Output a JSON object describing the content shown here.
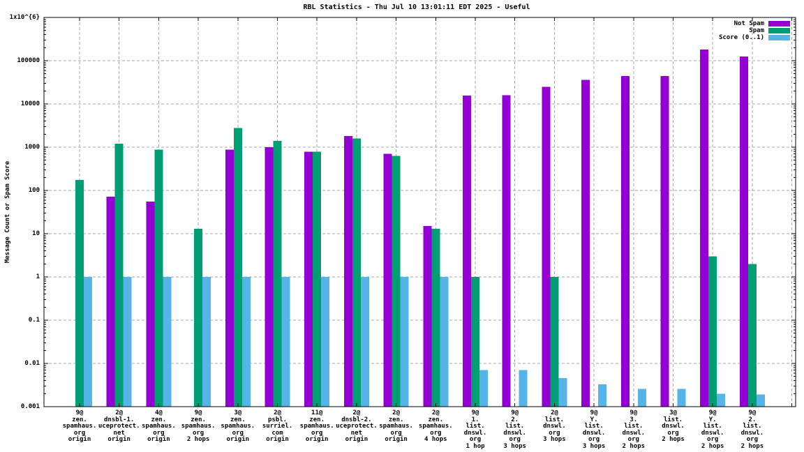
{
  "title": "RBL Statistics - Thu Jul 10 13:01:11 EDT 2025 - Useful",
  "colors": {
    "not_spam": "#9400d3",
    "spam": "#009e73",
    "score": "#56b4e9",
    "grid": "#a6a6a6",
    "axis": "#000000",
    "background": "#ffffff"
  },
  "legend": [
    {
      "label": "Not Spam",
      "color": "#9400d3"
    },
    {
      "label": "Spam",
      "color": "#009e73"
    },
    {
      "label": "Score (0..1)",
      "color": "#56b4e9"
    }
  ],
  "y_axis": {
    "label": "Message Count or Spam Score",
    "scale": "log",
    "ticks": [
      {
        "label": "1x10^{6}",
        "value": 1000000
      },
      {
        "label": "100000",
        "value": 100000
      },
      {
        "label": "10000",
        "value": 10000
      },
      {
        "label": "1000",
        "value": 1000
      },
      {
        "label": "100",
        "value": 100
      },
      {
        "label": "10",
        "value": 10
      },
      {
        "label": "1",
        "value": 1
      },
      {
        "label": "0.1",
        "value": 0.1
      },
      {
        "label": "0.01",
        "value": 0.01
      },
      {
        "label": "0.001",
        "value": 0.001
      }
    ]
  },
  "chart_data": {
    "type": "bar",
    "y_scale": "log",
    "ylim": [
      0.001,
      1000000
    ],
    "grid": true,
    "legend_position": "top-right",
    "title": "RBL Statistics - Thu Jul 10 13:01:11 EDT 2025 - Useful",
    "xlabel": "",
    "ylabel": "Message Count or Spam Score",
    "categories": [
      [
        "9@",
        "zen.",
        "spamhaus.",
        "org",
        "origin"
      ],
      [
        "2@",
        "dnsbl-1.",
        "uceprotect.",
        "net",
        "origin"
      ],
      [
        "4@",
        "zen.",
        "spamhaus.",
        "org",
        "origin"
      ],
      [
        "9@",
        "zen.",
        "spamhaus.",
        "org",
        "2 hops"
      ],
      [
        "3@",
        "zen.",
        "spamhaus.",
        "org",
        "origin"
      ],
      [
        "2@",
        "psbl.",
        "surriel.",
        "com",
        "origin"
      ],
      [
        "11@",
        "zen.",
        "spamhaus.",
        "org",
        "origin"
      ],
      [
        "2@",
        "dnsbl-2.",
        "uceprotect.",
        "net",
        "origin"
      ],
      [
        "2@",
        "zen.",
        "spamhaus.",
        "org",
        "origin"
      ],
      [
        "2@",
        "zen.",
        "spamhaus.",
        "org",
        "4 hops"
      ],
      [
        "9@",
        "1.",
        "list.",
        "dnswl.",
        "org",
        "1 hop"
      ],
      [
        "9@",
        "2.",
        "list.",
        "dnswl.",
        "org",
        "3 hops"
      ],
      [
        "2@",
        "list.",
        "dnswl.",
        "org",
        "3 hops"
      ],
      [
        "9@",
        "Y.",
        "list.",
        "dnswl.",
        "org",
        "3 hops"
      ],
      [
        "9@",
        "3.",
        "list.",
        "dnswl.",
        "org",
        "2 hops"
      ],
      [
        "3@",
        "list.",
        "dnswl.",
        "org",
        "2 hops"
      ],
      [
        "9@",
        "Y.",
        "list.",
        "dnswl.",
        "org",
        "2 hops"
      ],
      [
        "9@",
        "2.",
        "list.",
        "dnswl.",
        "org",
        "2 hops"
      ]
    ],
    "series": [
      {
        "name": "Not Spam",
        "color": "#9400d3",
        "values": [
          null,
          72,
          55,
          null,
          880,
          1000,
          790,
          1800,
          700,
          15,
          15500,
          16000,
          25000,
          36000,
          44000,
          44000,
          180000,
          125000
        ]
      },
      {
        "name": "Spam",
        "color": "#009e73",
        "values": [
          175,
          1200,
          880,
          13,
          2800,
          1400,
          790,
          1600,
          630,
          13,
          1,
          null,
          1,
          null,
          null,
          null,
          3,
          2
        ]
      },
      {
        "name": "Score (0..1)",
        "color": "#56b4e9",
        "values": [
          1,
          1,
          1,
          1,
          1,
          1,
          1,
          1,
          1,
          1,
          0.007,
          0.007,
          0.0046,
          0.0033,
          0.0026,
          0.0026,
          0.002,
          0.0019
        ]
      }
    ]
  }
}
